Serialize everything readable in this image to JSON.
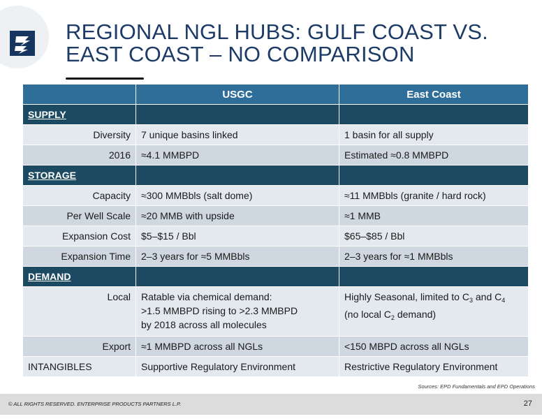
{
  "title": {
    "line1": "REGIONAL NGL HUBS:  GULF COAST VS.",
    "line2": "EAST COAST – NO COMPARISON"
  },
  "table": {
    "headers": [
      "",
      "USGC",
      "East Coast"
    ],
    "sections": {
      "supply": "SUPPLY",
      "storage": "STORAGE",
      "demand": "DEMAND"
    },
    "rows": {
      "diversity": [
        "Diversity",
        "7 unique basins linked",
        "1 basin for all supply"
      ],
      "y2016": [
        "2016",
        "≈4.1 MMBPD",
        "Estimated ≈0.8 MMBPD"
      ],
      "capacity": [
        "Capacity",
        "≈300 MMBbls (salt dome)",
        "≈11 MMBbls (granite / hard rock)"
      ],
      "perwell": [
        "Per Well Scale",
        "≈20 MMB with upside",
        "≈1 MMB"
      ],
      "expcost": [
        "Expansion Cost",
        "$5–$15 / Bbl",
        "$65–$85 / Bbl"
      ],
      "exptime": [
        "Expansion Time",
        "2–3 years for ≈5 MMBbls",
        "2–3 years for ≈1 MMBbls"
      ],
      "local": {
        "label": "Local",
        "usgc_line1": "Ratable via chemical demand:",
        "usgc_line2": ">1.5 MMBPD rising to >2.3 MMBPD",
        "usgc_line3": "by 2018 across all molecules",
        "east_a": "Highly Seasonal, limited to C",
        "east_sub1": "3",
        "east_b": " and C",
        "east_sub2": "4",
        "east_c": "(no local C",
        "east_sub3": "2",
        "east_d": " demand)"
      },
      "export": [
        "Export",
        "≈1 MMBPD across all NGLs",
        "<150 MBPD across all NGLs"
      ],
      "intangibles": [
        "INTANGIBLES",
        "Supportive Regulatory Environment",
        "Restrictive Regulatory Environment"
      ]
    }
  },
  "sources": "Sources:  EPD Fundamentals and EPD Operations",
  "footer": {
    "copyright": "© ALL RIGHTS RESERVED. ENTERPRISE PRODUCTS PARTNERS L.P.",
    "page_number": "27"
  }
}
